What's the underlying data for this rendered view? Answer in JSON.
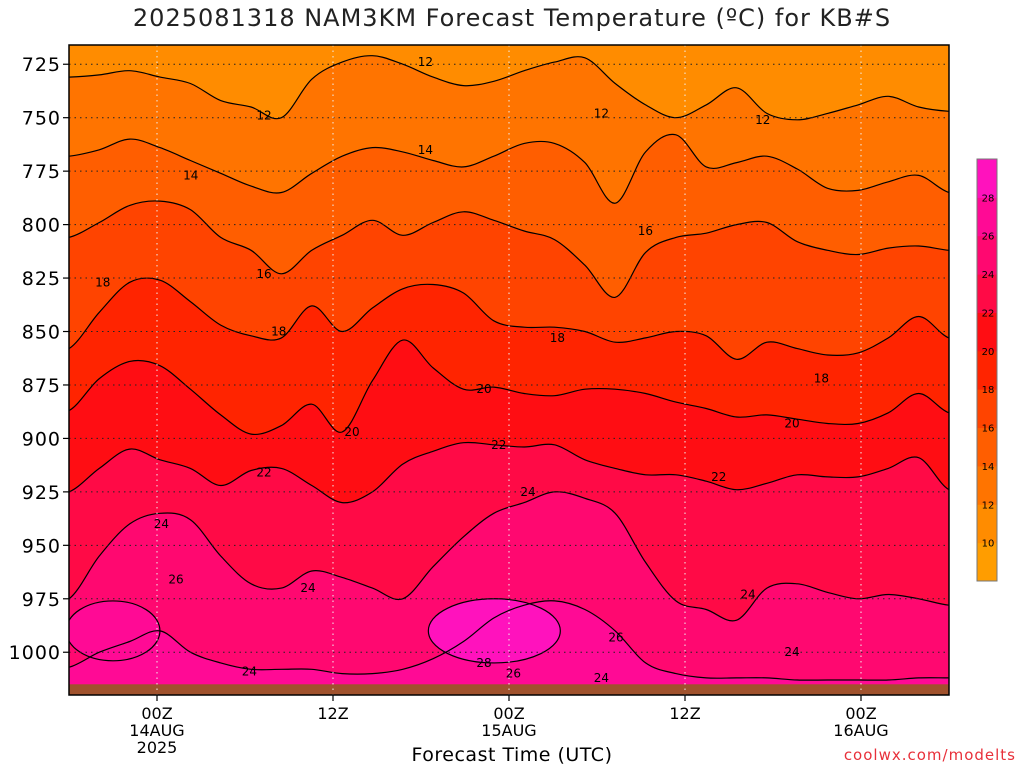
{
  "chart_data": {
    "type": "heatmap",
    "title": "2025081318 NAM3KM Forecast Temperature (ºC) for KB#S",
    "xlabel": "Forecast Time (UTC)",
    "ylabel": "",
    "x_ticks": [
      {
        "hour": 6,
        "lines": [
          "00Z",
          "14AUG",
          "2025"
        ]
      },
      {
        "hour": 18,
        "lines": [
          "12Z"
        ]
      },
      {
        "hour": 30,
        "lines": [
          "00Z",
          "15AUG"
        ]
      },
      {
        "hour": 42,
        "lines": [
          "12Z"
        ]
      },
      {
        "hour": 54,
        "lines": [
          "00Z",
          "16AUG"
        ]
      }
    ],
    "xlim": [
      0,
      60
    ],
    "y_ticks": [
      725,
      750,
      775,
      800,
      825,
      850,
      875,
      900,
      925,
      950,
      975,
      1000
    ],
    "ylim": [
      1020,
      716
    ],
    "ground_pressure": 1015,
    "grid": true,
    "colorbar": {
      "levels": [
        8,
        10,
        12,
        14,
        16,
        18,
        20,
        22,
        24,
        26,
        28,
        30
      ],
      "tick_labels": [
        10,
        12,
        14,
        16,
        18,
        20,
        22,
        24,
        26,
        28
      ],
      "colors": [
        "#ff9d00",
        "#ff8c00",
        "#ff7400",
        "#ff5e00",
        "#ff4400",
        "#ff2400",
        "#ff0d13",
        "#ff0a46",
        "#ff0870",
        "#ff0a95",
        "#ff12bd"
      ]
    },
    "isotherms": [
      {
        "temp": 12,
        "p": [
          731,
          730,
          728,
          731,
          734,
          742,
          745,
          750,
          732,
          724,
          721,
          725,
          731,
          735,
          733,
          728,
          724,
          722,
          734,
          744,
          750,
          744,
          736,
          748,
          751,
          748,
          744,
          740,
          745,
          747
        ]
      },
      {
        "temp": 14,
        "p": [
          768,
          765,
          760,
          764,
          770,
          776,
          782,
          785,
          776,
          768,
          764,
          766,
          770,
          773,
          768,
          762,
          762,
          771,
          790,
          766,
          758,
          773,
          771,
          768,
          774,
          783,
          784,
          780,
          777,
          785
        ]
      },
      {
        "temp": 16,
        "p": [
          806,
          799,
          791,
          789,
          793,
          806,
          812,
          823,
          812,
          805,
          798,
          805,
          799,
          794,
          798,
          803,
          807,
          819,
          834,
          813,
          806,
          804,
          800,
          799,
          808,
          812,
          814,
          811,
          810,
          812
        ]
      },
      {
        "temp": 18,
        "p": [
          858,
          841,
          827,
          826,
          836,
          847,
          852,
          853,
          838,
          850,
          839,
          830,
          828,
          832,
          845,
          848,
          848,
          850,
          855,
          853,
          850,
          852,
          863,
          855,
          858,
          861,
          860,
          853,
          843,
          853
        ]
      },
      {
        "temp": 20,
        "p": [
          887,
          872,
          864,
          866,
          877,
          889,
          898,
          894,
          884,
          897,
          873,
          854,
          867,
          877,
          876,
          879,
          880,
          877,
          877,
          879,
          883,
          886,
          890,
          889,
          891,
          893,
          893,
          888,
          879,
          888
        ]
      },
      {
        "temp": 22,
        "p": [
          925,
          914,
          905,
          910,
          914,
          922,
          915,
          914,
          922,
          930,
          925,
          912,
          906,
          902,
          903,
          904,
          903,
          910,
          914,
          917,
          917,
          920,
          924,
          921,
          917,
          918,
          918,
          914,
          909,
          924
        ]
      },
      {
        "temp": 24,
        "p": [
          975,
          955,
          940,
          935,
          938,
          955,
          968,
          970,
          962,
          965,
          970,
          975,
          960,
          946,
          935,
          930,
          925,
          928,
          935,
          958,
          976,
          980,
          985,
          970,
          968,
          972,
          975,
          973,
          975,
          978
        ]
      },
      {
        "temp": 26,
        "p": [
          1007,
          1000,
          995,
          990,
          1000,
          1005,
          1008,
          1008,
          1008,
          1010,
          1010,
          1008,
          1003,
          995,
          984,
          978,
          976,
          980,
          990,
          1005,
          1010,
          1012,
          1012,
          1012,
          1013,
          1013,
          1013,
          1013,
          1012,
          1012
        ]
      }
    ],
    "warm_pockets": [
      {
        "temp": 26,
        "center_hour": 3,
        "center_p": 990,
        "rx_hours": 3.2,
        "rp": 14
      },
      {
        "temp": 28,
        "center_hour": 29,
        "center_p": 990,
        "rx_hours": 4.5,
        "rp": 15
      }
    ],
    "contour_labels": [
      {
        "text": "12",
        "hour": 24.3,
        "p": 724
      },
      {
        "text": "12",
        "hour": 13.3,
        "p": 749
      },
      {
        "text": "12",
        "hour": 36.3,
        "p": 748
      },
      {
        "text": "12",
        "hour": 47.3,
        "p": 751
      },
      {
        "text": "14",
        "hour": 24.3,
        "p": 765
      },
      {
        "text": "14",
        "hour": 8.3,
        "p": 777
      },
      {
        "text": "16",
        "hour": 39.3,
        "p": 803
      },
      {
        "text": "16",
        "hour": 13.3,
        "p": 823
      },
      {
        "text": "18",
        "hour": 2.3,
        "p": 827
      },
      {
        "text": "18",
        "hour": 14.3,
        "p": 850
      },
      {
        "text": "18",
        "hour": 33.3,
        "p": 853
      },
      {
        "text": "18",
        "hour": 51.3,
        "p": 872
      },
      {
        "text": "20",
        "hour": 28.3,
        "p": 877
      },
      {
        "text": "20",
        "hour": 49.3,
        "p": 893
      },
      {
        "text": "20",
        "hour": 19.3,
        "p": 897
      },
      {
        "text": "22",
        "hour": 29.3,
        "p": 903
      },
      {
        "text": "22",
        "hour": 13.3,
        "p": 916
      },
      {
        "text": "22",
        "hour": 44.3,
        "p": 918
      },
      {
        "text": "24",
        "hour": 31.3,
        "p": 925
      },
      {
        "text": "24",
        "hour": 6.3,
        "p": 940
      },
      {
        "text": "24",
        "hour": 16.3,
        "p": 970
      },
      {
        "text": "24",
        "hour": 46.3,
        "p": 973
      },
      {
        "text": "24",
        "hour": 49.3,
        "p": 1000
      },
      {
        "text": "24",
        "hour": 12.3,
        "p": 1009
      },
      {
        "text": "24",
        "hour": 36.3,
        "p": 1012
      },
      {
        "text": "26",
        "hour": 7.3,
        "p": 966
      },
      {
        "text": "26",
        "hour": 37.3,
        "p": 993
      },
      {
        "text": "26",
        "hour": 30.3,
        "p": 1010
      },
      {
        "text": "28",
        "hour": 28.3,
        "p": 1005
      }
    ]
  },
  "footer": {
    "credit": "coolwx.com/modelts"
  }
}
